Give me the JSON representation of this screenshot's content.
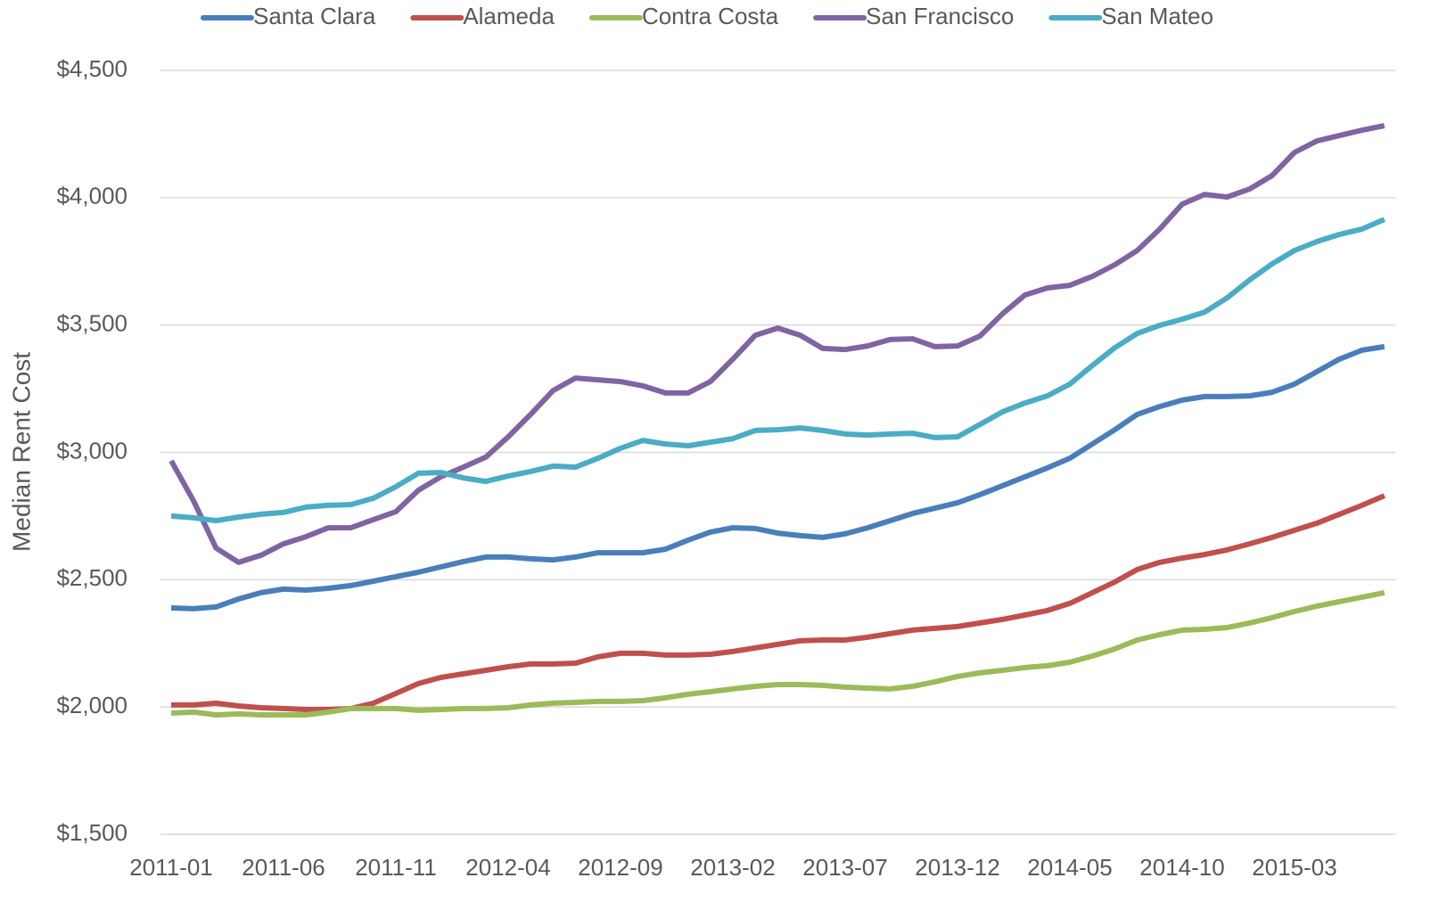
{
  "chart_data": {
    "type": "line",
    "y_label": "Median Rent Cost",
    "categories": [
      "2011-01",
      null,
      null,
      null,
      null,
      "2011-06",
      null,
      null,
      null,
      null,
      "2011-11",
      null,
      null,
      null,
      null,
      "2012-04",
      null,
      null,
      null,
      null,
      "2012-09",
      null,
      null,
      null,
      null,
      "2013-02",
      null,
      null,
      null,
      null,
      "2013-07",
      null,
      null,
      null,
      null,
      "2013-12",
      null,
      null,
      null,
      null,
      "2014-05",
      null,
      null,
      null,
      null,
      "2014-10",
      null,
      null,
      null,
      null,
      "2015-03",
      null,
      null,
      null,
      null
    ],
    "ylim": [
      1500,
      4500
    ],
    "yticks": [
      {
        "value": 1500,
        "label": "$1,500"
      },
      {
        "value": 2000,
        "label": "$2,000"
      },
      {
        "value": 2500,
        "label": "$2,500"
      },
      {
        "value": 3000,
        "label": "$3,000"
      },
      {
        "value": 3500,
        "label": "$3,500"
      },
      {
        "value": 4000,
        "label": "$4,000"
      },
      {
        "value": 4500,
        "label": "$4,500"
      }
    ],
    "grid": true,
    "legend": "top",
    "series": [
      {
        "name": "Santa Clara",
        "color": "#4a7ebb",
        "values": [
          2389,
          2386,
          2393,
          2424,
          2449,
          2463,
          2459,
          2466,
          2477,
          2494,
          2512,
          2529,
          2550,
          2571,
          2589,
          2589,
          2582,
          2578,
          2589,
          2606,
          2606,
          2606,
          2620,
          2655,
          2687,
          2704,
          2701,
          2683,
          2673,
          2666,
          2680,
          2704,
          2732,
          2760,
          2781,
          2802,
          2834,
          2869,
          2904,
          2939,
          2977,
          3033,
          3089,
          3149,
          3180,
          3205,
          3219,
          3219,
          3222,
          3236,
          3268,
          3317,
          3366,
          3401,
          3415
        ]
      },
      {
        "name": "Alameda",
        "color": "#c0504d",
        "values": [
          2008,
          2008,
          2015,
          2004,
          1997,
          1994,
          1990,
          1990,
          1994,
          2015,
          2053,
          2092,
          2116,
          2130,
          2144,
          2158,
          2169,
          2169,
          2172,
          2197,
          2211,
          2211,
          2204,
          2204,
          2207,
          2218,
          2232,
          2246,
          2260,
          2263,
          2263,
          2274,
          2288,
          2302,
          2309,
          2316,
          2330,
          2344,
          2361,
          2379,
          2407,
          2449,
          2491,
          2540,
          2568,
          2585,
          2599,
          2617,
          2641,
          2666,
          2694,
          2722,
          2757,
          2792,
          2830
        ]
      },
      {
        "name": "Contra Costa",
        "color": "#9bbb59",
        "values": [
          1976,
          1980,
          1969,
          1973,
          1969,
          1969,
          1969,
          1980,
          1994,
          1994,
          1994,
          1987,
          1990,
          1994,
          1994,
          1997,
          2008,
          2015,
          2018,
          2022,
          2022,
          2025,
          2036,
          2050,
          2060,
          2071,
          2081,
          2088,
          2088,
          2085,
          2078,
          2074,
          2071,
          2081,
          2099,
          2120,
          2134,
          2144,
          2155,
          2162,
          2176,
          2200,
          2228,
          2263,
          2284,
          2302,
          2305,
          2312,
          2330,
          2351,
          2375,
          2396,
          2414,
          2431,
          2449
        ]
      },
      {
        "name": "San Francisco",
        "color": "#8064a2",
        "values": [
          2967,
          2809,
          2624,
          2568,
          2596,
          2641,
          2669,
          2704,
          2704,
          2736,
          2767,
          2851,
          2904,
          2942,
          2981,
          3061,
          3149,
          3243,
          3292,
          3285,
          3278,
          3261,
          3233,
          3233,
          3278,
          3366,
          3460,
          3488,
          3460,
          3408,
          3404,
          3418,
          3443,
          3446,
          3415,
          3418,
          3457,
          3544,
          3618,
          3646,
          3656,
          3691,
          3737,
          3793,
          3877,
          3975,
          4013,
          4003,
          4034,
          4087,
          4178,
          4223,
          4244,
          4265,
          4283
        ]
      },
      {
        "name": "San Mateo",
        "color": "#4bacc6",
        "values": [
          2750,
          2743,
          2732,
          2746,
          2757,
          2764,
          2785,
          2792,
          2795,
          2820,
          2865,
          2918,
          2921,
          2900,
          2886,
          2907,
          2925,
          2946,
          2942,
          2977,
          3016,
          3047,
          3033,
          3026,
          3040,
          3054,
          3086,
          3089,
          3096,
          3086,
          3072,
          3068,
          3072,
          3075,
          3058,
          3061,
          3110,
          3159,
          3194,
          3222,
          3268,
          3341,
          3411,
          3467,
          3499,
          3523,
          3551,
          3607,
          3677,
          3740,
          3793,
          3828,
          3856,
          3877,
          3915
        ]
      }
    ]
  }
}
